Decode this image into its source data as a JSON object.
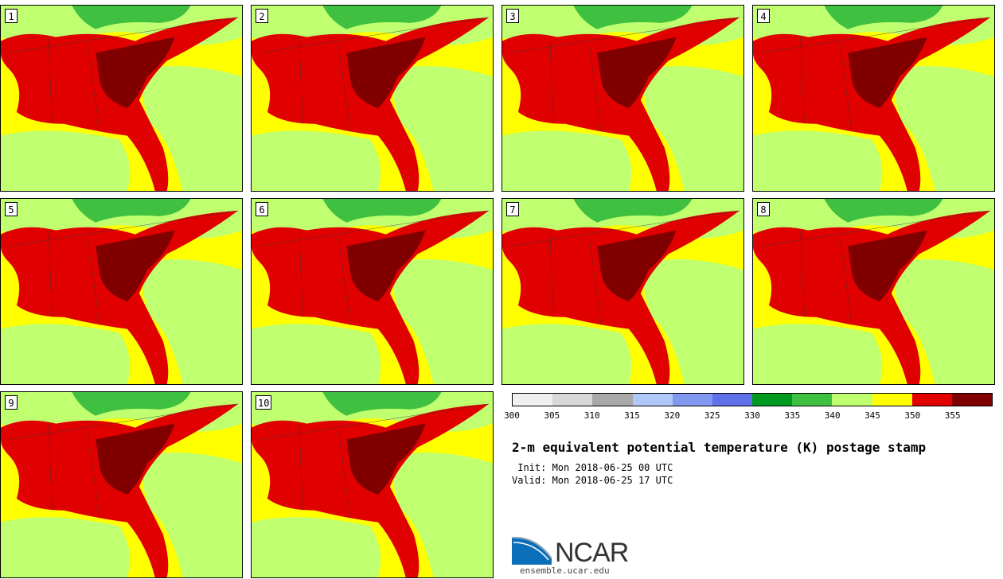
{
  "panels": [
    {
      "label": "1"
    },
    {
      "label": "2"
    },
    {
      "label": "3"
    },
    {
      "label": "4"
    },
    {
      "label": "5"
    },
    {
      "label": "6"
    },
    {
      "label": "7"
    },
    {
      "label": "8"
    },
    {
      "label": "9"
    },
    {
      "label": "10"
    }
  ],
  "colorbar": {
    "colors": [
      "#f0f0f0",
      "#d8d8d8",
      "#a8a8a8",
      "#b0c8f8",
      "#8098f0",
      "#6070e8",
      "#009a20",
      "#40c040",
      "#c0ff70",
      "#ffff00",
      "#e00000",
      "#800000"
    ],
    "ticks": [
      "300",
      "305",
      "310",
      "315",
      "320",
      "325",
      "330",
      "335",
      "340",
      "345",
      "350",
      "355"
    ]
  },
  "title": "2-m equivalent potential temperature (K) postage stamp",
  "init": " Init: Mon 2018-06-25 00 UTC",
  "valid": "Valid: Mon 2018-06-25 17 UTC",
  "logo": {
    "text": "NCAR",
    "url": "ensemble.ucar.edu"
  }
}
